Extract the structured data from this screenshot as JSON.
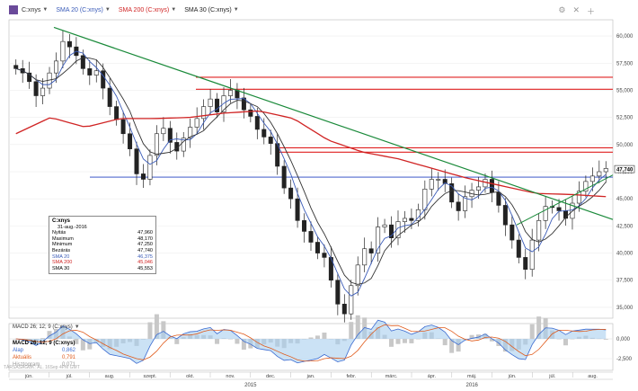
{
  "toolbar": {
    "symbol": "C:xnys",
    "indicators": [
      {
        "label": "SMA 20 (C:xnys)",
        "color": "#3a5bb8"
      },
      {
        "label": "SMA 200 (C:xnys)",
        "color": "#d02424"
      },
      {
        "label": "SMA 30 (C:xnys)",
        "color": "#222222"
      }
    ]
  },
  "price_axis": {
    "ticks": [
      "60,000",
      "57,500",
      "55,000",
      "52,500",
      "50,000",
      "47,500",
      "45,000",
      "42,500",
      "40,000",
      "37,500",
      "35,000"
    ],
    "last_price": "47,740"
  },
  "info_box": {
    "title": "C:xnys",
    "date": "31-aug.-2016",
    "rows": [
      {
        "label": "Nyitás",
        "value": "47,960"
      },
      {
        "label": "Maximum",
        "value": "48,170"
      },
      {
        "label": "Minimum",
        "value": "47,250"
      },
      {
        "label": "Bezárás",
        "value": "47,740"
      },
      {
        "label": "SMA 20",
        "value": "46,375"
      },
      {
        "label": "SMA 200",
        "value": "45,046"
      },
      {
        "label": "SMA 30",
        "value": "45,553"
      }
    ]
  },
  "macd": {
    "title": "MACD 26; 12; 9 (C:xnys)",
    "toolbar_label": "MACD 26; 12; 9 (C:xnys)",
    "rows": [
      {
        "label": "Alap",
        "value": "0,862"
      },
      {
        "label": "Aktuális",
        "value": "0,791"
      },
      {
        "label": "Hisztogram",
        "value": "0,071"
      }
    ],
    "ticks": [
      "0,000",
      "-2,500"
    ]
  },
  "watermark": "TÁRSASÁGOK: ÁL. 16Sep 4PM GMT",
  "x_axis": {
    "months": [
      "jún.",
      "júl.",
      "aug.",
      "szept.",
      "okt.",
      "nov.",
      "dec.",
      "jan.",
      "febr.",
      "márc.",
      "ápr.",
      "máj.",
      "jún.",
      "júl.",
      "aug."
    ],
    "years": [
      "2015",
      "2016"
    ]
  },
  "colors": {
    "sma20": "#3a5bb8",
    "sma200": "#d02424",
    "sma30": "#333333",
    "trend": "#1a8a3a",
    "support": "#2040c0",
    "resistance": "#e02020"
  },
  "icons": [
    "settings-icon",
    "close-icon",
    "plus-icon"
  ],
  "chart_data": {
    "type": "candlestick",
    "ylim": [
      34,
      61.5
    ],
    "levels": {
      "resistance": [
        56.2,
        55.1,
        49.7,
        49.3
      ],
      "support": [
        47.0
      ]
    },
    "close": [
      57.0,
      56.6,
      55.8,
      54.5,
      55.2,
      56.6,
      57.7,
      59.5,
      59.0,
      58.2,
      57.0,
      56.4,
      56.8,
      55.2,
      53.5,
      52.3,
      51.0,
      49.6,
      47.3,
      46.8,
      49.0,
      51.0,
      51.5,
      50.2,
      49.4,
      50.6,
      51.6,
      52.4,
      53.5,
      54.2,
      53.0,
      54.5,
      55.0,
      54.3,
      53.2,
      52.6,
      51.4,
      50.7,
      50.1,
      48.0,
      46.0,
      45.0,
      43.0,
      42.0,
      41.0,
      40.0,
      39.6,
      37.5,
      35.3,
      34.4,
      37.0,
      38.9,
      40.4,
      40.0,
      42.4,
      42.6,
      41.4,
      42.9,
      43.2,
      43.0,
      44.0,
      45.9,
      46.8,
      46.8,
      46.4,
      44.7,
      43.9,
      45.2,
      45.8,
      46.1,
      46.8,
      45.6,
      44.4,
      42.6,
      41.2,
      39.6,
      38.5,
      41.2,
      43.0,
      44.3,
      44.2,
      43.9,
      43.2,
      44.6,
      45.7,
      46.6,
      47.1,
      47.5,
      47.8
    ]
  }
}
